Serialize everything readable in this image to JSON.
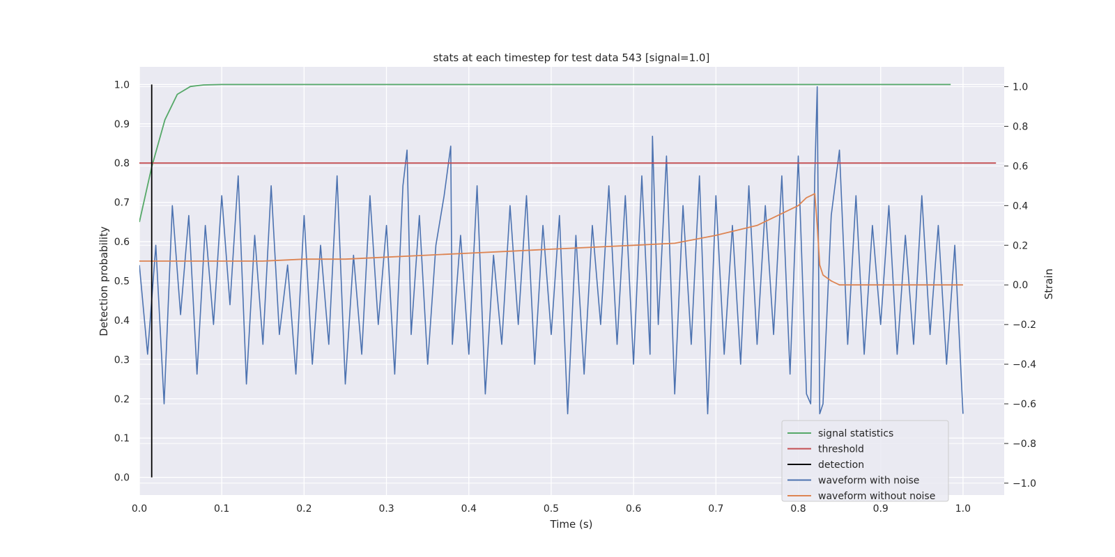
{
  "chart_data": {
    "type": "line",
    "title": "stats at each timestep for test data 543 [signal=1.0]",
    "xlabel": "Time (s)",
    "ylabel_left": "Detection probability",
    "ylabel_right": "Strain",
    "xlim": [
      0.0,
      1.05
    ],
    "ylim_left": [
      -0.045,
      1.045
    ],
    "ylim_right": [
      -1.06,
      1.1
    ],
    "x_ticks": [
      "0.0",
      "0.1",
      "0.2",
      "0.3",
      "0.4",
      "0.5",
      "0.6",
      "0.7",
      "0.8",
      "0.9",
      "1.0"
    ],
    "y_left_ticks": [
      "0.0",
      "0.1",
      "0.2",
      "0.3",
      "0.4",
      "0.5",
      "0.6",
      "0.7",
      "0.8",
      "0.9",
      "1.0"
    ],
    "y_right_ticks": [
      "−1.0",
      "−0.8",
      "−0.6",
      "−0.4",
      "−0.2",
      "0.0",
      "0.2",
      "0.4",
      "0.6",
      "0.8",
      "1.0"
    ],
    "grid": true,
    "legend_position": "lower-right",
    "colors": {
      "background": "#eaeaf2",
      "grid": "#ffffff",
      "signal": "#55a868",
      "threshold": "#c44e52",
      "detection": "#000000",
      "noisy": "#4c72b0",
      "clean": "#dd8452"
    },
    "series": [
      {
        "name": "signal statistics",
        "axis": "left",
        "x": [
          0.0,
          0.015,
          0.031,
          0.046,
          0.062,
          0.078,
          0.1,
          0.2,
          0.4,
          0.6,
          0.8,
          0.985
        ],
        "y": [
          0.65,
          0.79,
          0.91,
          0.975,
          0.995,
          0.999,
          1.0,
          1.0,
          1.0,
          1.0,
          1.0,
          1.0
        ]
      },
      {
        "name": "threshold",
        "axis": "left",
        "x": [
          0.0,
          1.04
        ],
        "y": [
          0.8,
          0.8
        ]
      },
      {
        "name": "detection",
        "axis": "left",
        "x": [
          0.015,
          0.015
        ],
        "y": [
          0.0,
          1.0
        ]
      },
      {
        "name": "waveform with noise",
        "axis": "right",
        "x": [
          0.0,
          0.01,
          0.02,
          0.03,
          0.04,
          0.05,
          0.06,
          0.07,
          0.08,
          0.09,
          0.1,
          0.11,
          0.12,
          0.13,
          0.14,
          0.15,
          0.16,
          0.17,
          0.18,
          0.19,
          0.2,
          0.21,
          0.22,
          0.23,
          0.24,
          0.25,
          0.26,
          0.27,
          0.28,
          0.29,
          0.3,
          0.31,
          0.32,
          0.325,
          0.33,
          0.34,
          0.35,
          0.36,
          0.37,
          0.378,
          0.38,
          0.39,
          0.4,
          0.41,
          0.42,
          0.43,
          0.44,
          0.45,
          0.46,
          0.47,
          0.48,
          0.49,
          0.5,
          0.51,
          0.52,
          0.53,
          0.54,
          0.55,
          0.56,
          0.57,
          0.58,
          0.59,
          0.6,
          0.61,
          0.62,
          0.623,
          0.63,
          0.64,
          0.65,
          0.66,
          0.67,
          0.68,
          0.69,
          0.7,
          0.71,
          0.72,
          0.73,
          0.74,
          0.75,
          0.76,
          0.77,
          0.78,
          0.79,
          0.8,
          0.81,
          0.815,
          0.82,
          0.823,
          0.826,
          0.83,
          0.84,
          0.85,
          0.86,
          0.87,
          0.88,
          0.89,
          0.9,
          0.91,
          0.92,
          0.93,
          0.94,
          0.95,
          0.96,
          0.97,
          0.98,
          0.99,
          1.0
        ],
        "y": [
          0.1,
          -0.35,
          0.2,
          -0.6,
          0.4,
          -0.15,
          0.35,
          -0.45,
          0.3,
          -0.2,
          0.45,
          -0.1,
          0.55,
          -0.5,
          0.25,
          -0.3,
          0.5,
          -0.25,
          0.1,
          -0.45,
          0.35,
          -0.4,
          0.2,
          -0.3,
          0.55,
          -0.5,
          0.15,
          -0.35,
          0.45,
          -0.2,
          0.3,
          -0.45,
          0.5,
          0.68,
          -0.25,
          0.35,
          -0.4,
          0.2,
          0.45,
          0.7,
          -0.3,
          0.25,
          -0.35,
          0.5,
          -0.55,
          0.15,
          -0.3,
          0.4,
          -0.2,
          0.45,
          -0.4,
          0.3,
          -0.25,
          0.35,
          -0.65,
          0.25,
          -0.45,
          0.3,
          -0.2,
          0.5,
          -0.3,
          0.45,
          -0.4,
          0.55,
          -0.35,
          0.75,
          -0.2,
          0.65,
          -0.55,
          0.4,
          -0.3,
          0.55,
          -0.65,
          0.45,
          -0.35,
          0.3,
          -0.4,
          0.5,
          -0.3,
          0.4,
          -0.25,
          0.55,
          -0.45,
          0.65,
          -0.55,
          -0.6,
          0.55,
          1.0,
          -0.65,
          -0.6,
          0.35,
          0.68,
          -0.3,
          0.45,
          -0.35,
          0.3,
          -0.2,
          0.4,
          -0.35,
          0.25,
          -0.3,
          0.45,
          -0.25,
          0.3,
          -0.4,
          0.2,
          -0.65
        ]
      },
      {
        "name": "waveform without noise",
        "axis": "right",
        "x": [
          0.0,
          0.05,
          0.1,
          0.15,
          0.2,
          0.25,
          0.3,
          0.35,
          0.4,
          0.45,
          0.5,
          0.55,
          0.6,
          0.65,
          0.7,
          0.75,
          0.78,
          0.8,
          0.81,
          0.815,
          0.82,
          0.823,
          0.826,
          0.83,
          0.84,
          0.85,
          0.9,
          1.0
        ],
        "y": [
          0.12,
          0.12,
          0.12,
          0.12,
          0.13,
          0.13,
          0.14,
          0.15,
          0.16,
          0.17,
          0.18,
          0.19,
          0.2,
          0.21,
          0.25,
          0.3,
          0.36,
          0.4,
          0.44,
          0.45,
          0.46,
          0.3,
          0.1,
          0.05,
          0.02,
          0.0,
          0.0,
          0.0
        ]
      }
    ]
  }
}
